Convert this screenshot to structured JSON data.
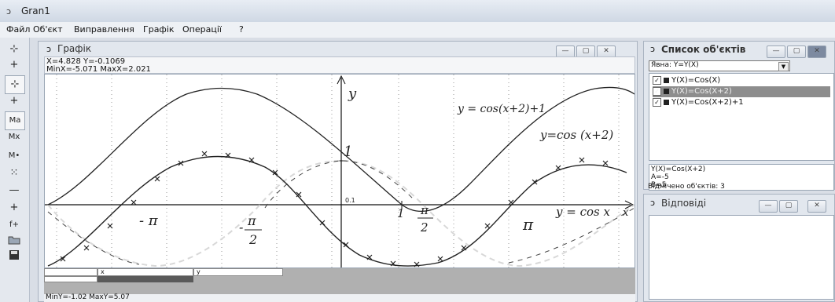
{
  "app": {
    "title": "Gran1"
  },
  "menu": [
    "Файл",
    "Об'єкт",
    "Виправлення",
    "Графік",
    "Операції",
    "?"
  ],
  "toolbar": {
    "tools": [
      "⊹",
      "+",
      "⊹",
      "+",
      "Ma",
      "Mx",
      "M•",
      "⁙",
      "—",
      "+",
      "f+",
      "open-icon",
      "save-icon"
    ]
  },
  "graph_window": {
    "title": "Графік",
    "cursor": "X=4.828  Y=-0.1069",
    "xrange": "MinX=-5.071  MaxX=2.021",
    "yrange": "MinY=-1.02  MaxY=5.07",
    "table_headers": {
      "x": "x",
      "y": "y"
    },
    "tick_label": "0.1",
    "handwritten": {
      "y_axis": "y",
      "x_axis": "x",
      "one": "1",
      "curve1": "y = cos(x+2)+1",
      "curve2": "y=cos (x+2)",
      "curve3": "y = cos x",
      "neg_pi": "- π",
      "neg_pi_half_num": "π",
      "neg_pi_half_den": "2",
      "neg_pi_half_sign": "-",
      "pi_half_num": "π",
      "pi_half_den": "2",
      "pi": "π",
      "one_mark": "1"
    }
  },
  "objects_window": {
    "title": "Список об'єктів",
    "filter_value": "Явна: Y=Y(X)",
    "items": [
      "Y(X)=Cos(X)",
      "Y(X)=Cos(X+2)",
      "Y(X)=Cos(X+2)+1"
    ],
    "selected_index": 1,
    "details": [
      "Y(X)=Cos(X+2)",
      "A=-5",
      "B=5"
    ],
    "status": "Відмічено об'єктів: 3"
  },
  "answers_window": {
    "title": "Відповіді"
  },
  "colors": {
    "selected_bg": "#8d8d8d",
    "curve": "#222222",
    "dashed": "#d8d8d8"
  }
}
